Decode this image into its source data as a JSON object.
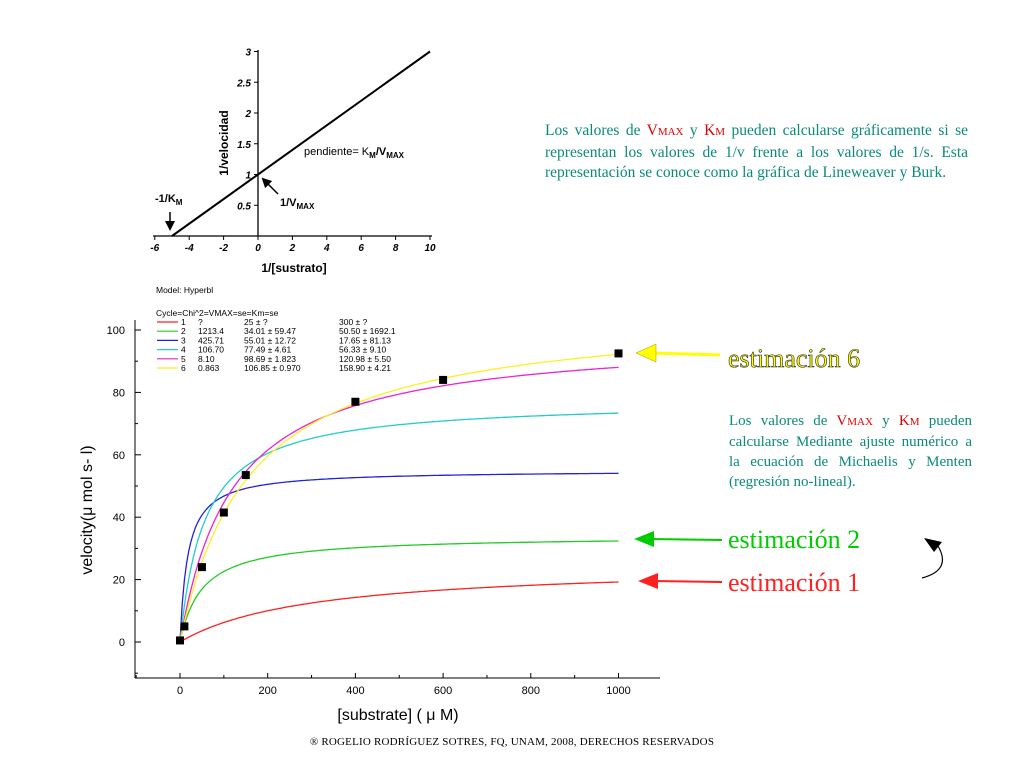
{
  "chart_data": [
    {
      "type": "line",
      "xlabel": "1/[sustrato]",
      "ylabel": "1/velocidad",
      "xlim": [
        -6,
        10
      ],
      "ylim": [
        0,
        3
      ],
      "x_ticks": [
        "-6",
        "-4",
        "-2",
        "0",
        "2",
        "4",
        "6",
        "8",
        "10"
      ],
      "y_ticks": [
        "0.5",
        "1",
        "1.5",
        "2",
        "2.5",
        "3"
      ],
      "line": {
        "x": [
          -5,
          10
        ],
        "y": [
          0,
          3
        ]
      },
      "annotations": {
        "slope": "pendiente= K",
        "slope_sub1": "M",
        "slope_sep": "/V",
        "slope_sub2": "MAX",
        "intercept_x": "-1/K",
        "intercept_x_sub": "M",
        "intercept_y": "1/V",
        "intercept_y_sub": "MAX"
      }
    },
    {
      "type": "scatter+line",
      "xlabel": "[substrate] ( μ M)",
      "ylabel": "velocity(μ mol s- l)",
      "xlim": [
        -100,
        1100
      ],
      "ylim": [
        -10,
        105
      ],
      "x_ticks": [
        "0",
        "200",
        "400",
        "600",
        "800",
        "1000"
      ],
      "y_ticks": [
        "0",
        "20",
        "40",
        "60",
        "80",
        "100"
      ],
      "points": {
        "x": [
          0,
          10,
          50,
          100,
          150,
          400,
          600,
          1000
        ],
        "y": [
          0.5,
          5,
          24,
          41.5,
          53.5,
          77,
          84,
          92.5
        ]
      },
      "series": [
        {
          "name": "1",
          "color": "#ff2020",
          "vmax": 25,
          "km": 300
        },
        {
          "name": "2",
          "color": "#22cc22",
          "vmax": 34.01,
          "km": 50.5
        },
        {
          "name": "3",
          "color": "#2222dd",
          "vmax": 55.01,
          "km": 17.65
        },
        {
          "name": "4",
          "color": "#22cccc",
          "vmax": 77.49,
          "km": 56.33
        },
        {
          "name": "5",
          "color": "#ee22cc",
          "vmax": 98.69,
          "km": 120.98
        },
        {
          "name": "6",
          "color": "#ffee22",
          "vmax": 106.85,
          "km": 158.9
        }
      ],
      "legend": {
        "model": "Model: Hyperbl",
        "header": "Cycle=Chi^2=VMAX=se=Km=se",
        "rows": [
          {
            "cycle": "1",
            "chi2": "?",
            "vmax": "25 ±  ?",
            "km": "300 ±      ?"
          },
          {
            "cycle": "2",
            "chi2": "1213.4",
            "vmax": "34.01 ± 59.47",
            "km": "50.50 ± 1692.1"
          },
          {
            "cycle": "3",
            "chi2": "425.71",
            "vmax": "55.01 ± 12.72",
            "km": "17.65 ± 81.13"
          },
          {
            "cycle": "4",
            "chi2": "106.70",
            "vmax": "77.49 ± 4.61",
            "km": "56.33 ± 9.10"
          },
          {
            "cycle": "5",
            "chi2": "8.10",
            "vmax": "98.69 ± 1.823",
            "km": "120.98 ± 5.50"
          },
          {
            "cycle": "6",
            "chi2": "0.863",
            "vmax": "106.85 ± 0.970",
            "km": "158.90 ± 4.21"
          }
        ]
      }
    }
  ],
  "callouts": {
    "est6": "estimación 6",
    "est2": "estimación 2",
    "est1": "estimación 1",
    "est6_color": "#ffff00",
    "est2_color": "#00cc00",
    "est1_color": "#ff2020"
  },
  "para_top": {
    "t1": "Los valores de ",
    "v": "V",
    "v_sub": "MAX",
    "t2": " y ",
    "k": "K",
    "k_sub": "M",
    "t3": " pueden calcularse gráficamente si se representan los valores de 1/v frente a los valores de 1/s. Esta representación se conoce como la gráfica de Lineweaver y Burk."
  },
  "para_bottom": {
    "t1": "Los valores de ",
    "v": "V",
    "v_sub": "MAX",
    "t2": " y ",
    "k": "K",
    "k_sub": "M",
    "t3": " pueden calcularse Mediante ajuste numérico a la ecuación de Michaelis y Menten (regresión no-lineal)."
  },
  "footer": "® ROGELIO RODRÍGUEZ SOTRES, FQ, UNAM, 2008, DERECHOS RESERVADOS"
}
